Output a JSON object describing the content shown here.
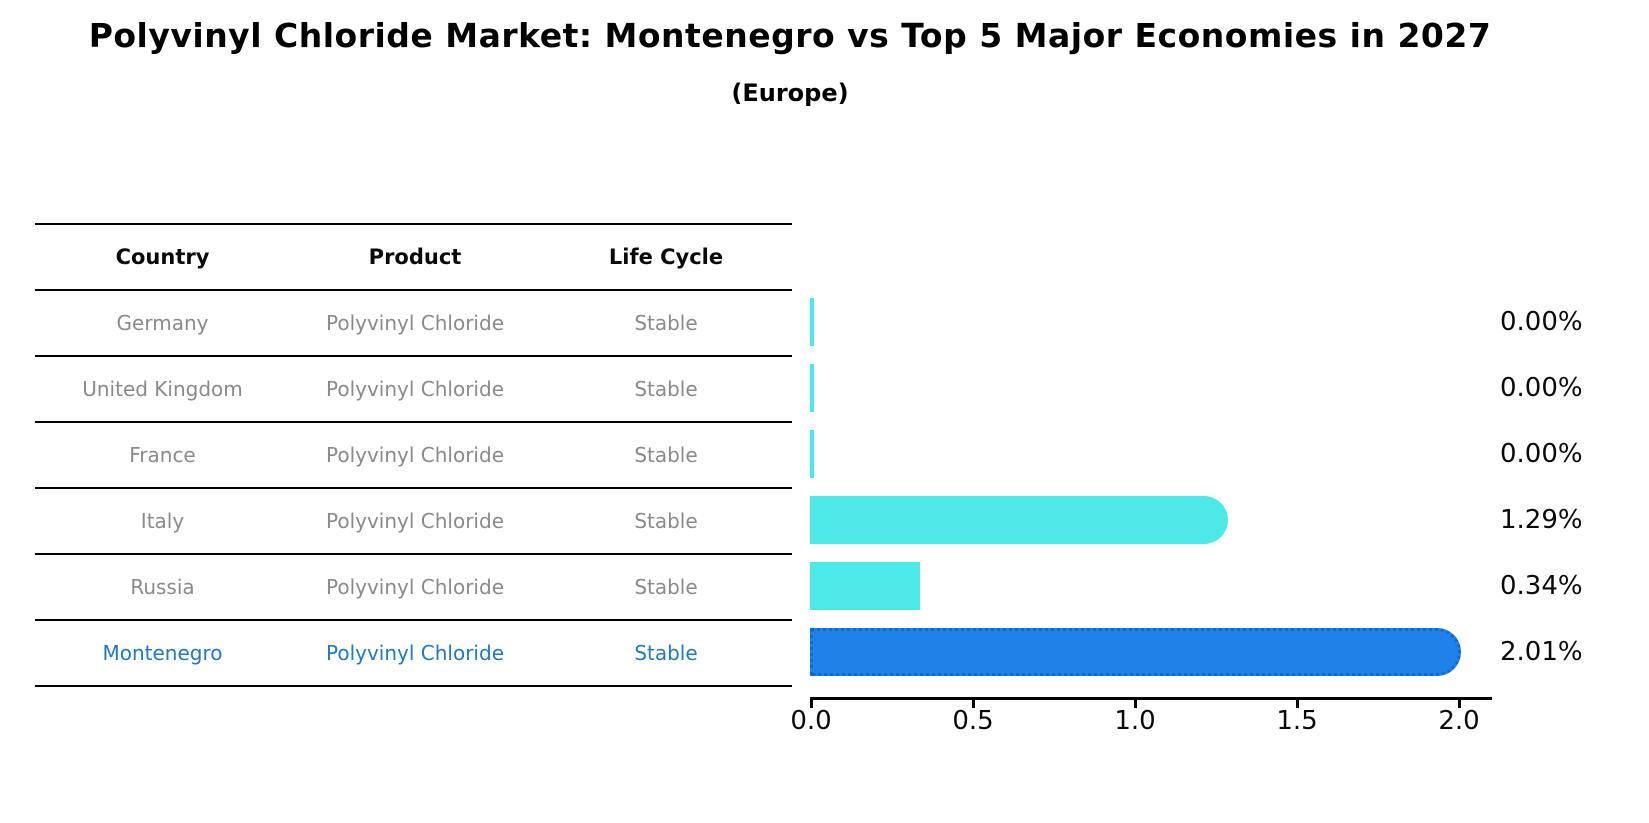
{
  "title": "Polyvinyl Chloride Market: Montenegro vs Top 5 Major Economies in 2027",
  "subtitle": "(Europe)",
  "table": {
    "headers": [
      "Country",
      "Product",
      "Life Cycle"
    ],
    "rows": [
      {
        "country": "Germany",
        "product": "Polyvinyl Chloride",
        "life_cycle": "Stable",
        "highlight": false
      },
      {
        "country": "United Kingdom",
        "product": "Polyvinyl Chloride",
        "life_cycle": "Stable",
        "highlight": false
      },
      {
        "country": "France",
        "product": "Polyvinyl Chloride",
        "life_cycle": "Stable",
        "highlight": false
      },
      {
        "country": "Italy",
        "product": "Polyvinyl Chloride",
        "life_cycle": "Stable",
        "highlight": false
      },
      {
        "country": "Russia",
        "product": "Polyvinyl Chloride",
        "life_cycle": "Stable",
        "highlight": false
      },
      {
        "country": "Montenegro",
        "product": "Polyvinyl Chloride",
        "life_cycle": "Stable",
        "highlight": true
      }
    ]
  },
  "chart_data": {
    "type": "bar",
    "orientation": "horizontal",
    "title": "Polyvinyl Chloride Market: Montenegro vs Top 5 Major Economies in 2027",
    "subtitle": "(Europe)",
    "categories": [
      "Germany",
      "United Kingdom",
      "France",
      "Italy",
      "Russia",
      "Montenegro"
    ],
    "values": [
      0.0,
      0.0,
      0.0,
      1.29,
      0.34,
      2.01
    ],
    "value_labels": [
      "0.00%",
      "0.00%",
      "0.00%",
      "1.29%",
      "0.34%",
      "2.01%"
    ],
    "xticks": [
      "0.0",
      "0.5",
      "1.0",
      "1.5",
      "2.0"
    ],
    "xtick_values": [
      0.0,
      0.5,
      1.0,
      1.5,
      2.0
    ],
    "xlim": [
      0,
      2.1
    ],
    "grid": false,
    "legend": "none",
    "colors": {
      "bar_default": "#4de8e8",
      "bar_highlight": "#1e82e8",
      "bar_highlight_edge": "#0e67d6",
      "highlight_text": "#2477c4",
      "row_text": "#8a8a8a",
      "header_text": "#0a0a0a"
    }
  }
}
